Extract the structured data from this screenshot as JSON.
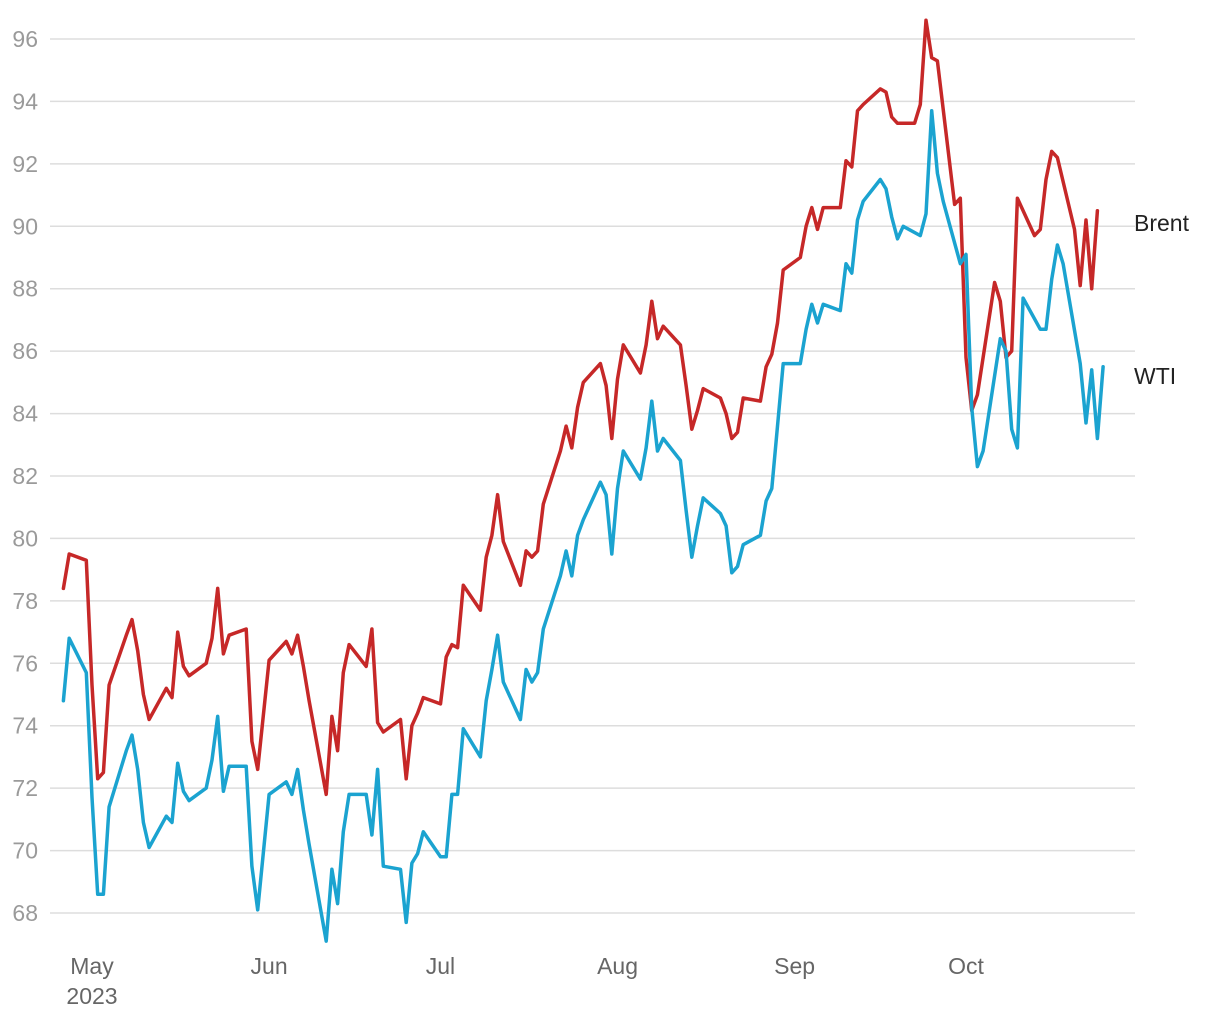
{
  "chart_data": {
    "type": "line",
    "title": "",
    "xlabel": "",
    "ylabel": "",
    "ylim": [
      67,
      96.5
    ],
    "grid": true,
    "legend": "inline labels at right end of lines",
    "y_ticks": [
      68,
      70,
      72,
      74,
      76,
      78,
      80,
      82,
      84,
      86,
      88,
      90,
      92,
      94,
      96
    ],
    "x_ticks": [
      {
        "date": "2023-05-01",
        "label": "May",
        "sublabel": "2023"
      },
      {
        "date": "2023-06-01",
        "label": "Jun",
        "sublabel": ""
      },
      {
        "date": "2023-07-01",
        "label": "Jul",
        "sublabel": ""
      },
      {
        "date": "2023-08-01",
        "label": "Aug",
        "sublabel": ""
      },
      {
        "date": "2023-09-01",
        "label": "Sep",
        "sublabel": ""
      },
      {
        "date": "2023-10-01",
        "label": "Oct",
        "sublabel": ""
      }
    ],
    "colors": {
      "Brent": "#c62828",
      "WTI": "#1ba3d0"
    },
    "series": [
      {
        "name": "Brent",
        "points": [
          [
            "2023-04-26",
            78.4
          ],
          [
            "2023-04-27",
            79.5
          ],
          [
            "2023-04-30",
            79.3
          ],
          [
            "2023-05-01",
            75.3
          ],
          [
            "2023-05-02",
            72.3
          ],
          [
            "2023-05-03",
            72.5
          ],
          [
            "2023-05-04",
            75.3
          ],
          [
            "2023-05-07",
            76.9
          ],
          [
            "2023-05-08",
            77.4
          ],
          [
            "2023-05-09",
            76.4
          ],
          [
            "2023-05-10",
            75.0
          ],
          [
            "2023-05-11",
            74.2
          ],
          [
            "2023-05-14",
            75.2
          ],
          [
            "2023-05-15",
            74.9
          ],
          [
            "2023-05-16",
            77.0
          ],
          [
            "2023-05-17",
            75.9
          ],
          [
            "2023-05-18",
            75.6
          ],
          [
            "2023-05-21",
            76.0
          ],
          [
            "2023-05-22",
            76.8
          ],
          [
            "2023-05-23",
            78.4
          ],
          [
            "2023-05-24",
            76.3
          ],
          [
            "2023-05-25",
            76.9
          ],
          [
            "2023-05-28",
            77.1
          ],
          [
            "2023-05-29",
            73.5
          ],
          [
            "2023-05-30",
            72.6
          ],
          [
            "2023-06-01",
            76.1
          ],
          [
            "2023-06-04",
            76.7
          ],
          [
            "2023-06-05",
            76.3
          ],
          [
            "2023-06-06",
            76.9
          ],
          [
            "2023-06-07",
            75.9
          ],
          [
            "2023-06-08",
            74.8
          ],
          [
            "2023-06-11",
            71.8
          ],
          [
            "2023-06-12",
            74.3
          ],
          [
            "2023-06-13",
            73.2
          ],
          [
            "2023-06-14",
            75.7
          ],
          [
            "2023-06-15",
            76.6
          ],
          [
            "2023-06-18",
            75.9
          ],
          [
            "2023-06-19",
            77.1
          ],
          [
            "2023-06-20",
            74.1
          ],
          [
            "2023-06-21",
            73.8
          ],
          [
            "2023-06-24",
            74.2
          ],
          [
            "2023-06-25",
            72.3
          ],
          [
            "2023-06-26",
            74.0
          ],
          [
            "2023-06-27",
            74.4
          ],
          [
            "2023-06-28",
            74.9
          ],
          [
            "2023-07-01",
            74.7
          ],
          [
            "2023-07-02",
            76.2
          ],
          [
            "2023-07-03",
            76.6
          ],
          [
            "2023-07-04",
            76.5
          ],
          [
            "2023-07-05",
            78.5
          ],
          [
            "2023-07-08",
            77.7
          ],
          [
            "2023-07-09",
            79.4
          ],
          [
            "2023-07-10",
            80.1
          ],
          [
            "2023-07-11",
            81.4
          ],
          [
            "2023-07-12",
            79.9
          ],
          [
            "2023-07-15",
            78.5
          ],
          [
            "2023-07-16",
            79.6
          ],
          [
            "2023-07-17",
            79.4
          ],
          [
            "2023-07-18",
            79.6
          ],
          [
            "2023-07-19",
            81.1
          ],
          [
            "2023-07-22",
            82.8
          ],
          [
            "2023-07-23",
            83.6
          ],
          [
            "2023-07-24",
            82.9
          ],
          [
            "2023-07-25",
            84.2
          ],
          [
            "2023-07-26",
            85.0
          ],
          [
            "2023-07-29",
            85.6
          ],
          [
            "2023-07-30",
            84.9
          ],
          [
            "2023-07-31",
            83.2
          ],
          [
            "2023-08-01",
            85.1
          ],
          [
            "2023-08-02",
            86.2
          ],
          [
            "2023-08-05",
            85.3
          ],
          [
            "2023-08-06",
            86.2
          ],
          [
            "2023-08-07",
            87.6
          ],
          [
            "2023-08-08",
            86.4
          ],
          [
            "2023-08-09",
            86.8
          ],
          [
            "2023-08-12",
            86.2
          ],
          [
            "2023-08-13",
            84.9
          ],
          [
            "2023-08-14",
            83.5
          ],
          [
            "2023-08-15",
            84.1
          ],
          [
            "2023-08-16",
            84.8
          ],
          [
            "2023-08-19",
            84.5
          ],
          [
            "2023-08-20",
            84.0
          ],
          [
            "2023-08-21",
            83.2
          ],
          [
            "2023-08-22",
            83.4
          ],
          [
            "2023-08-23",
            84.5
          ],
          [
            "2023-08-26",
            84.4
          ],
          [
            "2023-08-27",
            85.5
          ],
          [
            "2023-08-28",
            85.9
          ],
          [
            "2023-08-29",
            86.9
          ],
          [
            "2023-08-30",
            88.6
          ],
          [
            "2023-09-02",
            89.0
          ],
          [
            "2023-09-03",
            90.0
          ],
          [
            "2023-09-04",
            90.6
          ],
          [
            "2023-09-05",
            89.9
          ],
          [
            "2023-09-06",
            90.6
          ],
          [
            "2023-09-09",
            90.6
          ],
          [
            "2023-09-10",
            92.1
          ],
          [
            "2023-09-11",
            91.9
          ],
          [
            "2023-09-12",
            93.7
          ],
          [
            "2023-09-13",
            93.9
          ],
          [
            "2023-09-16",
            94.4
          ],
          [
            "2023-09-17",
            94.3
          ],
          [
            "2023-09-18",
            93.5
          ],
          [
            "2023-09-19",
            93.3
          ],
          [
            "2023-09-22",
            93.3
          ],
          [
            "2023-09-23",
            93.9
          ],
          [
            "2023-09-24",
            96.6
          ],
          [
            "2023-09-25",
            95.4
          ],
          [
            "2023-09-26",
            95.3
          ],
          [
            "2023-09-29",
            90.7
          ],
          [
            "2023-09-30",
            90.9
          ],
          [
            "2023-10-01",
            85.8
          ],
          [
            "2023-10-02",
            84.1
          ],
          [
            "2023-10-03",
            84.6
          ],
          [
            "2023-10-06",
            88.2
          ],
          [
            "2023-10-07",
            87.6
          ],
          [
            "2023-10-08",
            85.8
          ],
          [
            "2023-10-09",
            86.0
          ],
          [
            "2023-10-10",
            90.9
          ],
          [
            "2023-10-13",
            89.7
          ],
          [
            "2023-10-14",
            89.9
          ],
          [
            "2023-10-15",
            91.5
          ],
          [
            "2023-10-16",
            92.4
          ],
          [
            "2023-10-17",
            92.2
          ],
          [
            "2023-10-20",
            89.9
          ],
          [
            "2023-10-21",
            88.1
          ],
          [
            "2023-10-22",
            90.2
          ],
          [
            "2023-10-23",
            88.0
          ],
          [
            "2023-10-24",
            90.5
          ]
        ]
      },
      {
        "name": "WTI",
        "points": [
          [
            "2023-04-26",
            74.8
          ],
          [
            "2023-04-27",
            76.8
          ],
          [
            "2023-04-30",
            75.7
          ],
          [
            "2023-05-01",
            71.7
          ],
          [
            "2023-05-02",
            68.6
          ],
          [
            "2023-05-03",
            68.6
          ],
          [
            "2023-05-04",
            71.4
          ],
          [
            "2023-05-07",
            73.2
          ],
          [
            "2023-05-08",
            73.7
          ],
          [
            "2023-05-09",
            72.6
          ],
          [
            "2023-05-10",
            70.9
          ],
          [
            "2023-05-11",
            70.1
          ],
          [
            "2023-05-14",
            71.1
          ],
          [
            "2023-05-15",
            70.9
          ],
          [
            "2023-05-16",
            72.8
          ],
          [
            "2023-05-17",
            71.9
          ],
          [
            "2023-05-18",
            71.6
          ],
          [
            "2023-05-21",
            72.0
          ],
          [
            "2023-05-22",
            72.9
          ],
          [
            "2023-05-23",
            74.3
          ],
          [
            "2023-05-24",
            71.9
          ],
          [
            "2023-05-25",
            72.7
          ],
          [
            "2023-05-28",
            72.7
          ],
          [
            "2023-05-29",
            69.5
          ],
          [
            "2023-05-30",
            68.1
          ],
          [
            "2023-06-01",
            71.8
          ],
          [
            "2023-06-04",
            72.2
          ],
          [
            "2023-06-05",
            71.8
          ],
          [
            "2023-06-06",
            72.6
          ],
          [
            "2023-06-07",
            71.3
          ],
          [
            "2023-06-08",
            70.2
          ],
          [
            "2023-06-11",
            67.1
          ],
          [
            "2023-06-12",
            69.4
          ],
          [
            "2023-06-13",
            68.3
          ],
          [
            "2023-06-14",
            70.6
          ],
          [
            "2023-06-15",
            71.8
          ],
          [
            "2023-06-18",
            71.8
          ],
          [
            "2023-06-19",
            70.5
          ],
          [
            "2023-06-20",
            72.6
          ],
          [
            "2023-06-21",
            69.5
          ],
          [
            "2023-06-24",
            69.4
          ],
          [
            "2023-06-25",
            67.7
          ],
          [
            "2023-06-26",
            69.6
          ],
          [
            "2023-06-27",
            69.9
          ],
          [
            "2023-06-28",
            70.6
          ],
          [
            "2023-07-01",
            69.8
          ],
          [
            "2023-07-02",
            69.8
          ],
          [
            "2023-07-03",
            71.8
          ],
          [
            "2023-07-04",
            71.8
          ],
          [
            "2023-07-05",
            73.9
          ],
          [
            "2023-07-08",
            73.0
          ],
          [
            "2023-07-09",
            74.8
          ],
          [
            "2023-07-10",
            75.8
          ],
          [
            "2023-07-11",
            76.9
          ],
          [
            "2023-07-12",
            75.4
          ],
          [
            "2023-07-15",
            74.2
          ],
          [
            "2023-07-16",
            75.8
          ],
          [
            "2023-07-17",
            75.4
          ],
          [
            "2023-07-18",
            75.7
          ],
          [
            "2023-07-19",
            77.1
          ],
          [
            "2023-07-22",
            78.8
          ],
          [
            "2023-07-23",
            79.6
          ],
          [
            "2023-07-24",
            78.8
          ],
          [
            "2023-07-25",
            80.1
          ],
          [
            "2023-07-26",
            80.6
          ],
          [
            "2023-07-29",
            81.8
          ],
          [
            "2023-07-30",
            81.4
          ],
          [
            "2023-07-31",
            79.5
          ],
          [
            "2023-08-01",
            81.6
          ],
          [
            "2023-08-02",
            82.8
          ],
          [
            "2023-08-05",
            81.9
          ],
          [
            "2023-08-06",
            82.9
          ],
          [
            "2023-08-07",
            84.4
          ],
          [
            "2023-08-08",
            82.8
          ],
          [
            "2023-08-09",
            83.2
          ],
          [
            "2023-08-12",
            82.5
          ],
          [
            "2023-08-13",
            80.9
          ],
          [
            "2023-08-14",
            79.4
          ],
          [
            "2023-08-15",
            80.4
          ],
          [
            "2023-08-16",
            81.3
          ],
          [
            "2023-08-19",
            80.8
          ],
          [
            "2023-08-20",
            80.4
          ],
          [
            "2023-08-21",
            78.9
          ],
          [
            "2023-08-22",
            79.1
          ],
          [
            "2023-08-23",
            79.8
          ],
          [
            "2023-08-26",
            80.1
          ],
          [
            "2023-08-27",
            81.2
          ],
          [
            "2023-08-28",
            81.6
          ],
          [
            "2023-08-29",
            83.6
          ],
          [
            "2023-08-30",
            85.6
          ],
          [
            "2023-09-02",
            85.6
          ],
          [
            "2023-09-03",
            86.7
          ],
          [
            "2023-09-04",
            87.5
          ],
          [
            "2023-09-05",
            86.9
          ],
          [
            "2023-09-06",
            87.5
          ],
          [
            "2023-09-09",
            87.3
          ],
          [
            "2023-09-10",
            88.8
          ],
          [
            "2023-09-11",
            88.5
          ],
          [
            "2023-09-12",
            90.2
          ],
          [
            "2023-09-13",
            90.8
          ],
          [
            "2023-09-16",
            91.5
          ],
          [
            "2023-09-17",
            91.2
          ],
          [
            "2023-09-18",
            90.3
          ],
          [
            "2023-09-19",
            89.6
          ],
          [
            "2023-09-20",
            90.0
          ],
          [
            "2023-09-23",
            89.7
          ],
          [
            "2023-09-24",
            90.4
          ],
          [
            "2023-09-25",
            93.7
          ],
          [
            "2023-09-26",
            91.7
          ],
          [
            "2023-09-27",
            90.8
          ],
          [
            "2023-09-30",
            88.8
          ],
          [
            "2023-10-01",
            89.1
          ],
          [
            "2023-10-02",
            84.2
          ],
          [
            "2023-10-03",
            82.3
          ],
          [
            "2023-10-04",
            82.8
          ],
          [
            "2023-10-07",
            86.4
          ],
          [
            "2023-10-08",
            86.0
          ],
          [
            "2023-10-09",
            83.5
          ],
          [
            "2023-10-10",
            82.9
          ],
          [
            "2023-10-11",
            87.7
          ],
          [
            "2023-10-14",
            86.7
          ],
          [
            "2023-10-15",
            86.7
          ],
          [
            "2023-10-16",
            88.3
          ],
          [
            "2023-10-17",
            89.4
          ],
          [
            "2023-10-18",
            88.8
          ],
          [
            "2023-10-21",
            85.6
          ],
          [
            "2023-10-22",
            83.7
          ],
          [
            "2023-10-23",
            85.4
          ],
          [
            "2023-10-24",
            83.2
          ],
          [
            "2023-10-25",
            85.5
          ]
        ]
      }
    ]
  }
}
